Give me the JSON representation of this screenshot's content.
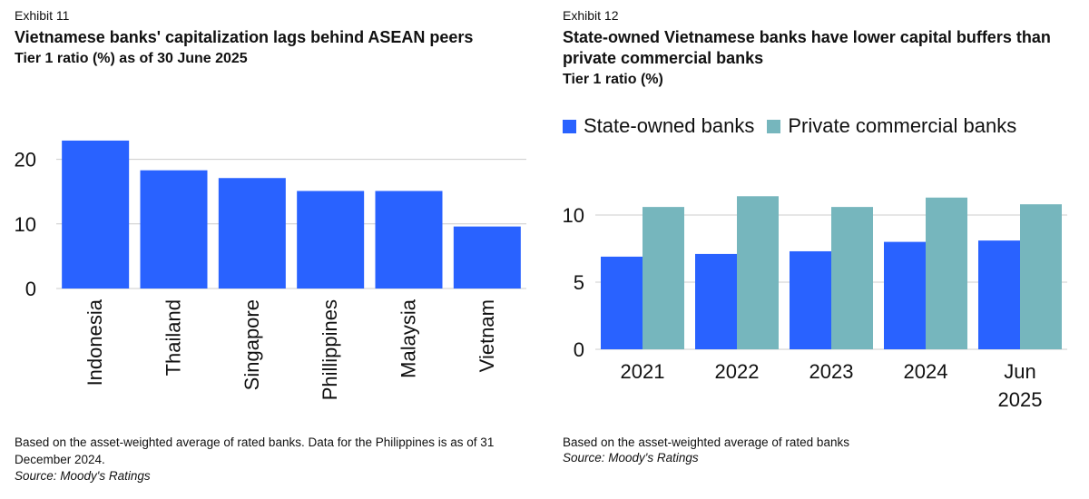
{
  "chart_data": [
    {
      "type": "bar",
      "exhibit": "Exhibit 11",
      "title": "Vietnamese banks' capitalization lags behind ASEAN peers",
      "subtitle": "Tier 1 ratio (%) as of 30 June 2025",
      "categories": [
        "Indonesia",
        "Thailand",
        "Singapore",
        "Phillippines",
        "Malaysia",
        "Vietnam"
      ],
      "values": [
        22.9,
        18.3,
        17.1,
        15.1,
        15.1,
        9.6
      ],
      "ylim": [
        0,
        25
      ],
      "yticks": [
        "0",
        "10",
        "20"
      ],
      "grid": true,
      "color": "#2962ff",
      "note": "Based on the asset-weighted average of rated banks. Data for the Philippines is as of 31 December 2024.",
      "source": "Source: Moody's Ratings"
    },
    {
      "type": "bar",
      "exhibit": "Exhibit 12",
      "title": "State-owned Vietnamese banks have lower capital buffers than private commercial banks",
      "subtitle": "Tier 1 ratio (%)",
      "categories": [
        "2021",
        "2022",
        "2023",
        "2024",
        "Jun 2025"
      ],
      "series": [
        {
          "name": "State-owned banks",
          "color": "#2962ff",
          "values": [
            6.9,
            7.1,
            7.3,
            8.0,
            8.1
          ]
        },
        {
          "name": "Private commercial banks",
          "color": "#76b6bd",
          "values": [
            10.6,
            11.4,
            10.6,
            11.3,
            10.8
          ]
        }
      ],
      "ylim": [
        0,
        12.5
      ],
      "yticks": [
        "0",
        "5",
        "10"
      ],
      "grid": true,
      "legend": "top-left",
      "note": "Based on the asset-weighted average of rated banks",
      "source": "Source: Moody's Ratings"
    }
  ]
}
